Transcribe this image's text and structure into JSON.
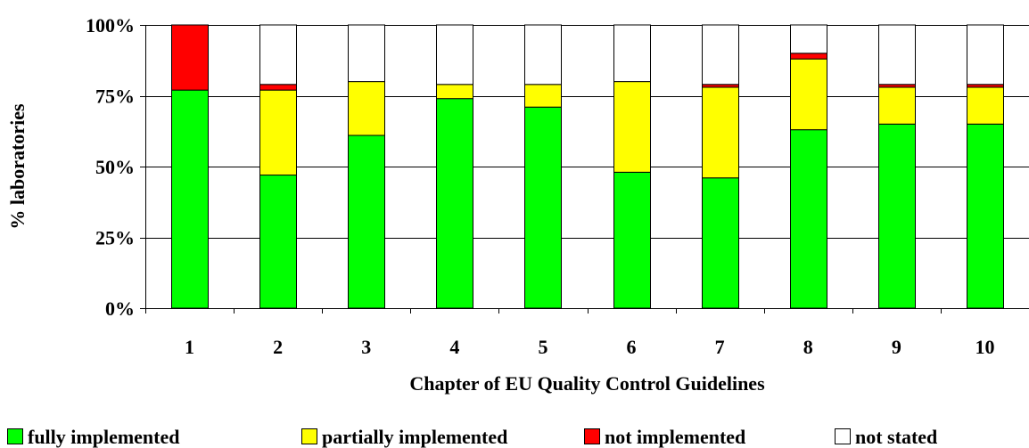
{
  "chart_data": {
    "type": "bar",
    "stacked": true,
    "categories": [
      "1",
      "2",
      "3",
      "4",
      "5",
      "6",
      "7",
      "8",
      "9",
      "10"
    ],
    "series": [
      {
        "name": "fully implemented",
        "color": "#00ff00",
        "values": [
          77,
          47,
          61,
          74,
          71,
          48,
          46,
          63,
          65,
          65
        ]
      },
      {
        "name": "partially implemented",
        "color": "#ffff00",
        "values": [
          0,
          30,
          19,
          5,
          8,
          32,
          32,
          25,
          13,
          13
        ]
      },
      {
        "name": "not implemented",
        "color": "#ff0000",
        "values": [
          23,
          2,
          0,
          0,
          0,
          0,
          1,
          2,
          1,
          1
        ]
      },
      {
        "name": "not stated",
        "color": "#ffffff",
        "values": [
          0,
          21,
          20,
          21,
          21,
          20,
          21,
          10,
          21,
          21
        ]
      }
    ],
    "xlabel": "Chapter of EU Quality Control Guidelines",
    "ylabel": "% laboratories",
    "ylim": [
      0,
      100
    ],
    "yticks": [
      "0%",
      "25%",
      "50%",
      "75%",
      "100%"
    ],
    "ytick_values": [
      0,
      25,
      50,
      75,
      100
    ],
    "grid": true,
    "legend_position": "bottom"
  }
}
